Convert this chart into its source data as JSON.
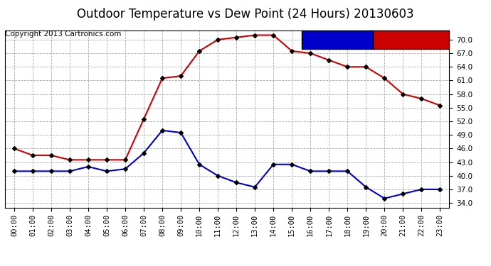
{
  "title": "Outdoor Temperature vs Dew Point (24 Hours) 20130603",
  "copyright": "Copyright 2013 Cartronics.com",
  "background_color": "#ffffff",
  "plot_bg_color": "#ffffff",
  "grid_color": "#aaaaaa",
  "hours": [
    "00:00",
    "01:00",
    "02:00",
    "03:00",
    "04:00",
    "05:00",
    "06:00",
    "07:00",
    "08:00",
    "09:00",
    "10:00",
    "11:00",
    "12:00",
    "13:00",
    "14:00",
    "15:00",
    "16:00",
    "17:00",
    "18:00",
    "19:00",
    "20:00",
    "21:00",
    "22:00",
    "23:00"
  ],
  "temperature": [
    46.0,
    44.5,
    44.5,
    43.5,
    43.5,
    43.5,
    43.5,
    52.5,
    61.5,
    62.0,
    67.5,
    70.0,
    70.5,
    71.0,
    71.0,
    67.5,
    67.0,
    65.5,
    64.0,
    64.0,
    61.5,
    58.0,
    57.0,
    55.5
  ],
  "dew_point": [
    41.0,
    41.0,
    41.0,
    41.0,
    42.0,
    41.0,
    41.5,
    45.0,
    50.0,
    49.5,
    42.5,
    40.0,
    38.5,
    37.5,
    42.5,
    42.5,
    41.0,
    41.0,
    41.0,
    37.5,
    35.0,
    36.0,
    37.0,
    37.0
  ],
  "temp_color": "#cc0000",
  "dew_color": "#0000cc",
  "marker": "D",
  "marker_size": 3,
  "line_width": 1.5,
  "ylim": [
    33.0,
    72.0
  ],
  "yticks": [
    34.0,
    37.0,
    40.0,
    43.0,
    46.0,
    49.0,
    52.0,
    55.0,
    58.0,
    61.0,
    64.0,
    67.0,
    70.0
  ],
  "legend_dew_bg": "#0000cc",
  "legend_temp_bg": "#cc0000",
  "legend_text_color": "#ffffff",
  "title_fontsize": 12,
  "copyright_fontsize": 7.5,
  "legend_fontsize": 7.5,
  "tick_fontsize": 7.5
}
